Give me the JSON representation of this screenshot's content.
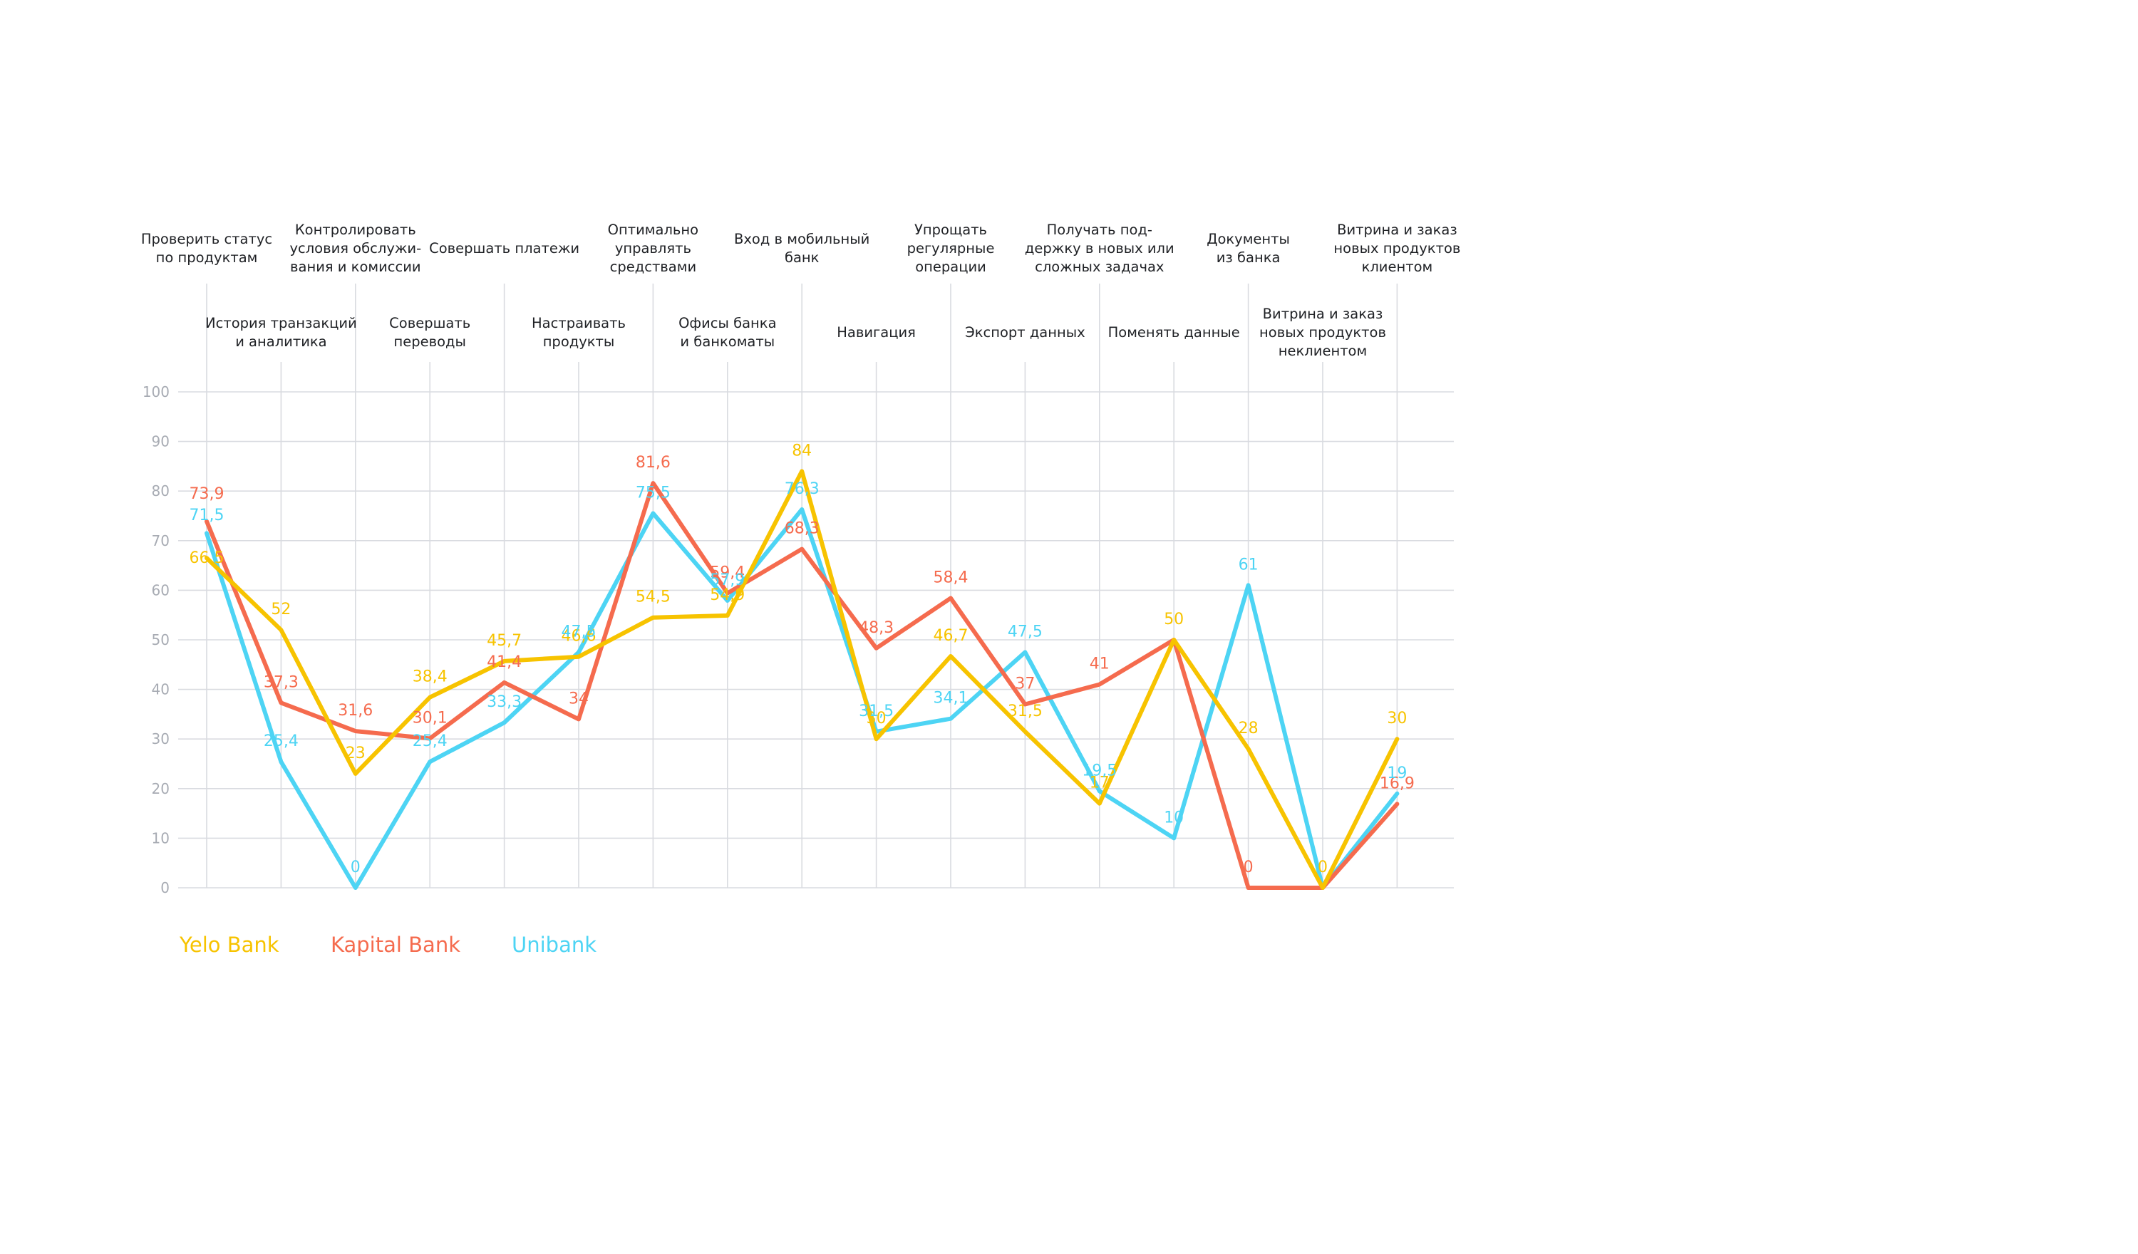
{
  "chart_data": {
    "type": "line",
    "title": "",
    "xlabel": "",
    "ylabel": "",
    "ylim": [
      0,
      100
    ],
    "yticks": [
      "0",
      "10",
      "20",
      "30",
      "40",
      "50",
      "60",
      "70",
      "80",
      "90",
      "100"
    ],
    "grid": true,
    "legend_position": "bottom-left",
    "categories": [
      [
        "Проверить статус",
        "по продуктам"
      ],
      [
        "История транзакций",
        "и аналитика"
      ],
      [
        "Контролировать",
        "условия обслужи-",
        "вания и комиссии"
      ],
      [
        "Совершать",
        "переводы"
      ],
      [
        "Совершать платежи"
      ],
      [
        "Настраивать",
        "продукты"
      ],
      [
        "Оптимально",
        "управлять",
        "средствами"
      ],
      [
        "Офисы банка",
        "и банкоматы"
      ],
      [
        "Вход в мобильный",
        "банк"
      ],
      [
        "Навигация"
      ],
      [
        "Упрощать",
        "регулярные",
        "операции"
      ],
      [
        "Экспорт данных"
      ],
      [
        "Получать под-",
        "держку в новых или",
        "сложных задачах"
      ],
      [
        "Поменять данные"
      ],
      [
        "Документы",
        "из банка"
      ],
      [
        "Витрина и заказ",
        "новых продуктов",
        "неклиентом"
      ],
      [
        "Витрина и заказ",
        "новых продуктов",
        "клиентом"
      ]
    ],
    "series": [
      {
        "name": "Yelo Bank",
        "color": "#f7c300",
        "values": [
          66.5,
          52,
          23,
          38.4,
          45.7,
          46.6,
          54.5,
          54.9,
          84,
          30,
          46.7,
          31.5,
          17,
          50,
          28,
          0,
          30
        ],
        "labels": [
          "66,5",
          "52",
          "23",
          "38,4",
          "45,7",
          "46,6",
          "54,5",
          "54,9",
          "84",
          "30",
          "46,7",
          "31,5",
          "17",
          "50",
          "28",
          "0",
          "30"
        ]
      },
      {
        "name": "Kapital Bank",
        "color": "#f56b4e",
        "values": [
          73.9,
          37.3,
          31.6,
          30.1,
          41.4,
          34,
          81.6,
          59.4,
          68.3,
          48.3,
          58.4,
          37,
          41,
          50,
          0,
          0,
          16.9
        ],
        "labels": [
          "73,9",
          "37,3",
          "31,6",
          "30,1",
          "41,4",
          "34",
          "81,6",
          "59,4",
          "68,3",
          "48,3",
          "58,4",
          "37",
          "41",
          "",
          "0",
          "",
          "16,9"
        ]
      },
      {
        "name": "Unibank",
        "color": "#4dd4f4",
        "values": [
          71.5,
          25.4,
          0,
          25.4,
          33.3,
          47.5,
          75.5,
          57.9,
          76.3,
          31.5,
          34.1,
          47.5,
          19.5,
          10,
          61,
          0,
          19
        ],
        "labels": [
          "71,5",
          "25,4",
          "0",
          "25,4",
          "33,3",
          "47,5",
          "75,5",
          "57,9",
          "76,3",
          "31,5",
          "34,1",
          "47,5",
          "19,5",
          "10",
          "61",
          "",
          "19"
        ]
      }
    ]
  }
}
